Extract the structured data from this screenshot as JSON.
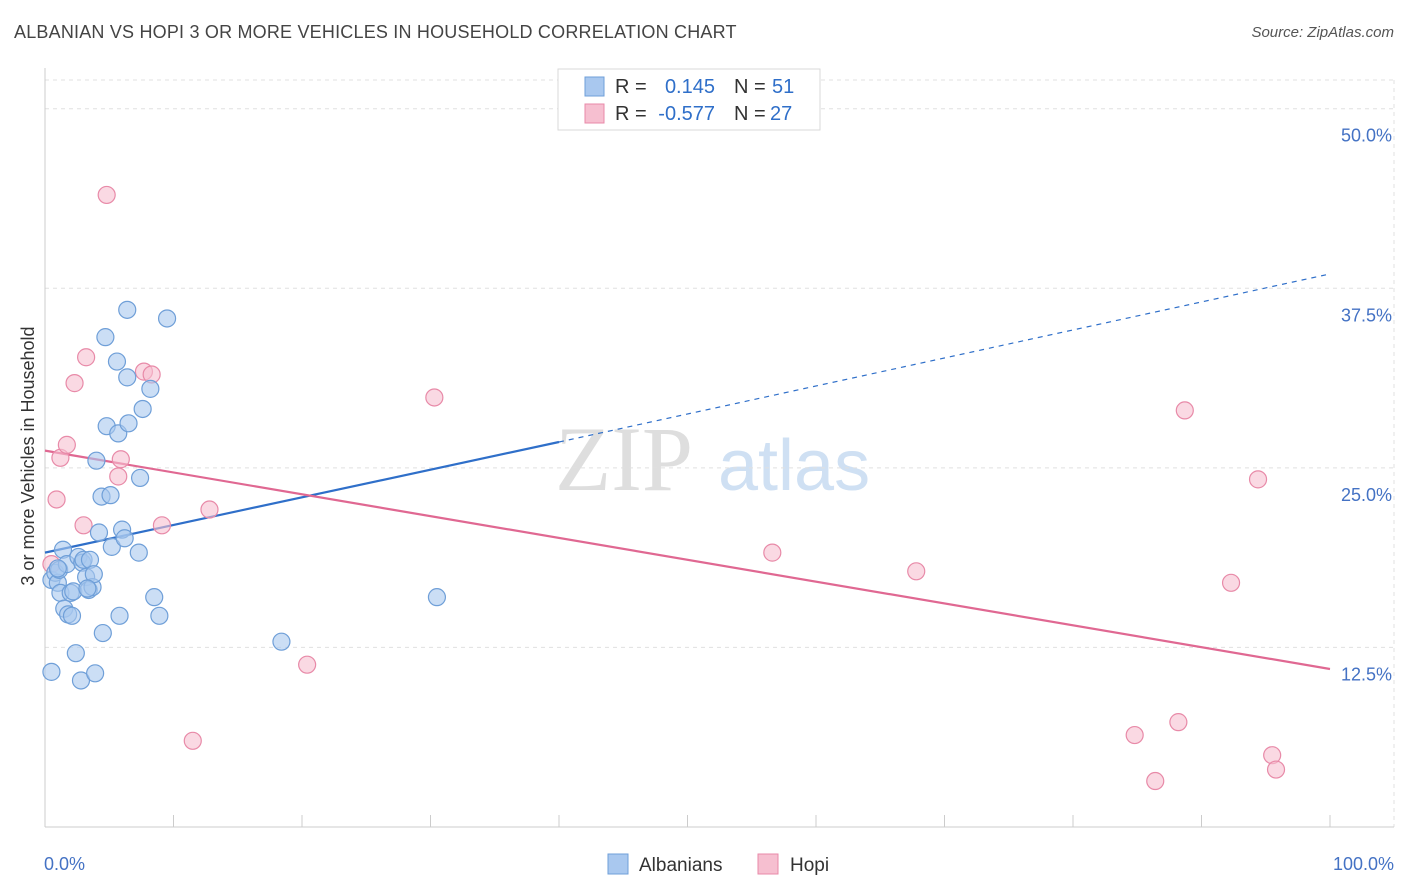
{
  "header": {
    "title": "ALBANIAN VS HOPI 3 OR MORE VEHICLES IN HOUSEHOLD CORRELATION CHART",
    "source": "Source: ZipAtlas.com"
  },
  "watermark": {
    "zip": "ZIP",
    "atlas": "atlas"
  },
  "legend": {
    "rows": [
      {
        "r_label": "R =",
        "r_value": "0.145",
        "n_label": "N =",
        "n_value": "51"
      },
      {
        "r_label": "R =",
        "r_value": "-0.577",
        "n_label": "N =",
        "n_value": "27"
      }
    ]
  },
  "colors": {
    "albanians_fill": "#a9c8ef",
    "albanians_stroke": "#6f9fd8",
    "albanians_line": "#2f6fc9",
    "hopi_fill": "#f6bfd0",
    "hopi_stroke": "#e88aa8",
    "hopi_line": "#e06892",
    "grid": "#e0e0e0",
    "axis_text": "#4472c4"
  },
  "chart_data": {
    "type": "scatter",
    "title": "ALBANIAN VS HOPI 3 OR MORE VEHICLES IN HOUSEHOLD CORRELATION CHART",
    "xlabel": "",
    "ylabel": "3 or more Vehicles in Household",
    "xlim": [
      0,
      100
    ],
    "ylim": [
      0,
      52
    ],
    "x_tick_labels": [
      "0.0%",
      "100.0%"
    ],
    "y_ticks": [
      12.5,
      25.0,
      37.5,
      50.0
    ],
    "y_tick_labels": [
      "12.5%",
      "25.0%",
      "37.5%",
      "50.0%"
    ],
    "grid": true,
    "legend_placement": "top-center",
    "series": [
      {
        "name": "Albanians",
        "r": 0.145,
        "n": 51,
        "points": [
          [
            0.5,
            10.8
          ],
          [
            0.5,
            17.2
          ],
          [
            0.8,
            17.7
          ],
          [
            1.0,
            17.0
          ],
          [
            1.1,
            17.9
          ],
          [
            1.2,
            16.3
          ],
          [
            1.4,
            19.3
          ],
          [
            1.5,
            15.2
          ],
          [
            1.7,
            18.3
          ],
          [
            1.8,
            14.8
          ],
          [
            2.0,
            16.3
          ],
          [
            2.1,
            14.7
          ],
          [
            2.2,
            16.4
          ],
          [
            2.4,
            12.1
          ],
          [
            2.6,
            18.8
          ],
          [
            2.8,
            10.2
          ],
          [
            2.9,
            18.4
          ],
          [
            3.0,
            18.6
          ],
          [
            3.2,
            17.4
          ],
          [
            3.4,
            16.5
          ],
          [
            3.5,
            18.6
          ],
          [
            3.7,
            16.7
          ],
          [
            3.8,
            17.6
          ],
          [
            3.9,
            10.7
          ],
          [
            4.0,
            25.5
          ],
          [
            4.2,
            20.5
          ],
          [
            4.4,
            23.0
          ],
          [
            4.5,
            13.5
          ],
          [
            4.7,
            34.1
          ],
          [
            4.8,
            27.9
          ],
          [
            5.1,
            23.1
          ],
          [
            5.2,
            19.5
          ],
          [
            5.6,
            32.4
          ],
          [
            5.7,
            27.4
          ],
          [
            5.8,
            14.7
          ],
          [
            6.0,
            20.7
          ],
          [
            6.2,
            20.1
          ],
          [
            6.4,
            31.3
          ],
          [
            6.5,
            28.1
          ],
          [
            6.4,
            36.0
          ],
          [
            7.3,
            19.1
          ],
          [
            7.4,
            24.3
          ],
          [
            7.6,
            29.1
          ],
          [
            8.2,
            30.5
          ],
          [
            8.5,
            16.0
          ],
          [
            8.9,
            14.7
          ],
          [
            9.5,
            35.4
          ],
          [
            18.4,
            12.9
          ],
          [
            30.5,
            16.0
          ],
          [
            1.0,
            18.0
          ],
          [
            3.3,
            16.6
          ]
        ]
      },
      {
        "name": "Hopi",
        "r": -0.577,
        "n": 27,
        "points": [
          [
            0.5,
            18.3
          ],
          [
            0.9,
            22.8
          ],
          [
            1.2,
            25.7
          ],
          [
            1.7,
            26.6
          ],
          [
            2.3,
            30.9
          ],
          [
            3.0,
            21.0
          ],
          [
            3.2,
            32.7
          ],
          [
            4.8,
            44.0
          ],
          [
            5.7,
            24.4
          ],
          [
            5.9,
            25.6
          ],
          [
            7.7,
            31.7
          ],
          [
            8.3,
            31.5
          ],
          [
            9.1,
            21.0
          ],
          [
            11.5,
            6.0
          ],
          [
            12.8,
            22.1
          ],
          [
            20.4,
            11.3
          ],
          [
            30.3,
            29.9
          ],
          [
            56.6,
            19.1
          ],
          [
            67.8,
            17.8
          ],
          [
            84.8,
            6.4
          ],
          [
            86.4,
            3.2
          ],
          [
            88.2,
            7.3
          ],
          [
            88.7,
            29.0
          ],
          [
            92.3,
            17.0
          ],
          [
            94.4,
            24.2
          ],
          [
            95.5,
            5.0
          ],
          [
            95.8,
            4.0
          ]
        ]
      }
    ],
    "trendlines": [
      {
        "series": "Albanians",
        "from": [
          0,
          19.1
        ],
        "to": [
          40,
          26.8
        ],
        "extended_to": [
          100,
          38.5
        ],
        "style": "solid-then-dashed"
      },
      {
        "series": "Hopi",
        "from": [
          0,
          26.2
        ],
        "to": [
          100,
          11.0
        ],
        "style": "solid"
      }
    ]
  },
  "bottom_legend": [
    {
      "label": "Albanians"
    },
    {
      "label": "Hopi"
    }
  ]
}
